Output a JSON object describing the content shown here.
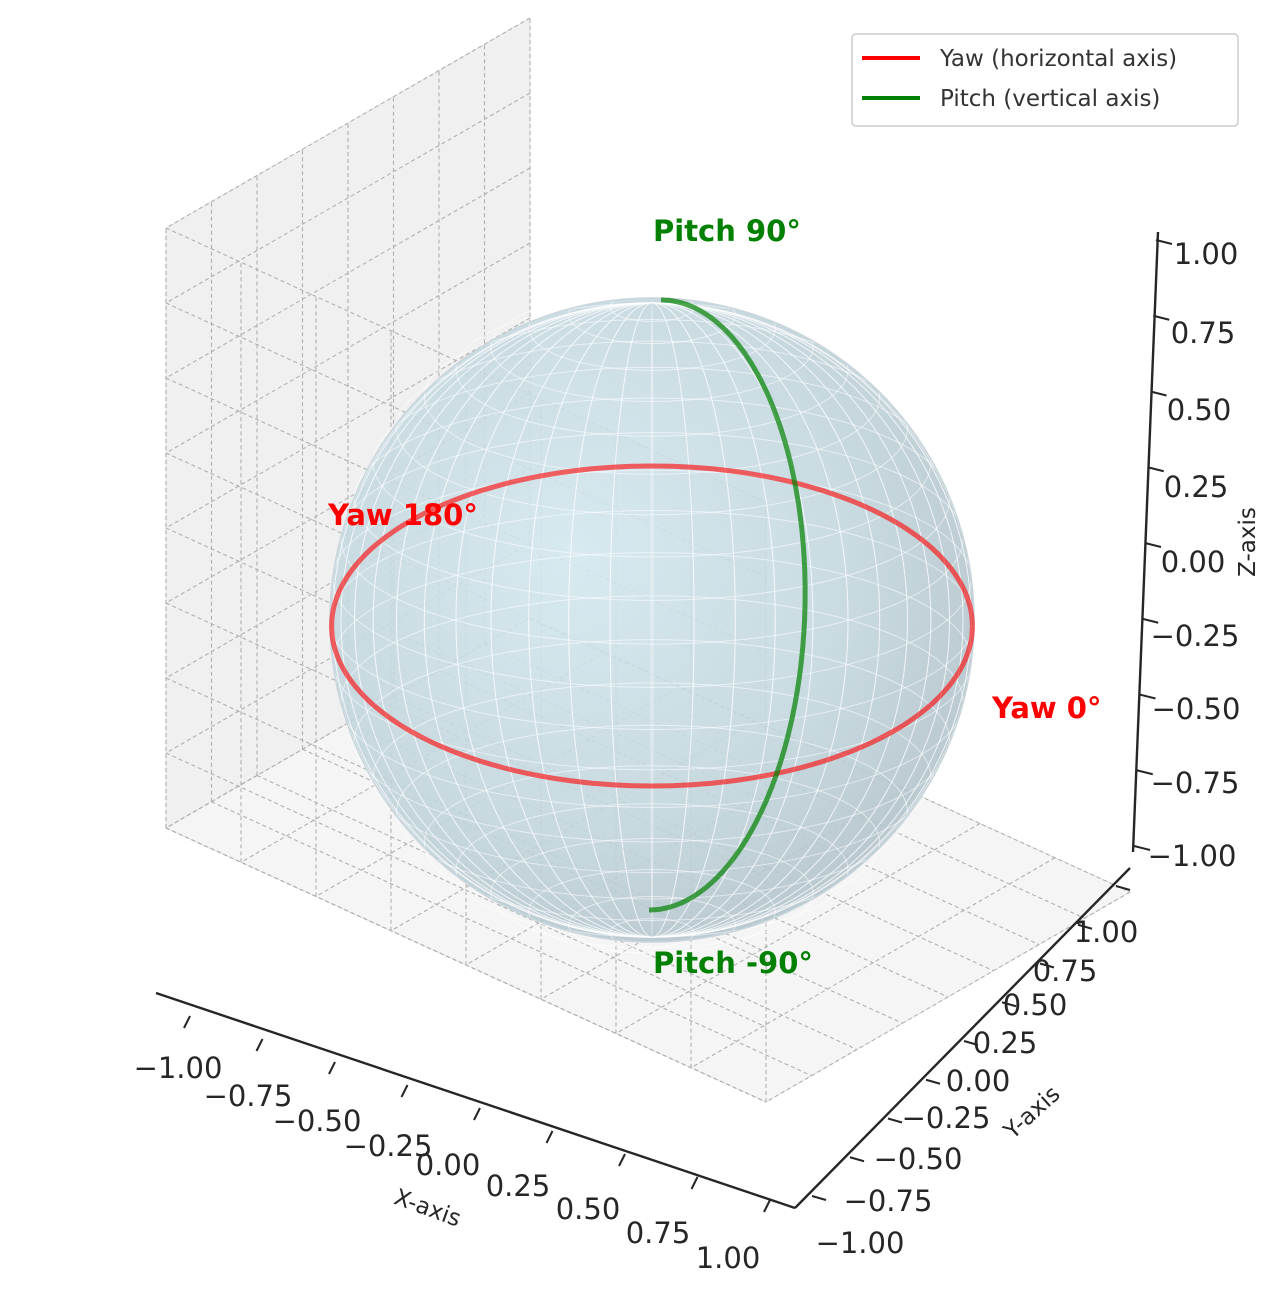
{
  "chart_data": {
    "type": "line",
    "projection": "3d",
    "title": "",
    "xlabel": "X-axis",
    "ylabel": "Y-axis",
    "zlabel": "Z-axis",
    "xlim": [
      -1,
      1
    ],
    "ylim": [
      -1,
      1
    ],
    "zlim": [
      -1,
      1
    ],
    "x_ticks": [
      "−1.00",
      "−0.75",
      "−0.50",
      "−0.25",
      "0.00",
      "0.25",
      "0.50",
      "0.75",
      "1.00"
    ],
    "y_ticks": [
      "−1.00",
      "−0.75",
      "−0.50",
      "−0.25",
      "0.00",
      "0.25",
      "0.50",
      "0.75",
      "1.00"
    ],
    "z_ticks": [
      "−1.00",
      "−0.75",
      "−0.50",
      "−0.25",
      "0.00",
      "0.25",
      "0.50",
      "0.75",
      "1.00"
    ],
    "grid": true,
    "legend_position": "top-right",
    "surface": {
      "shape": "unit sphere",
      "radius": 1,
      "color": "#add8e6",
      "alpha": 0.3
    },
    "series": [
      {
        "name": "Yaw (horizontal axis)",
        "color": "#ff0000",
        "description_curve": "equator z=0",
        "angle_range_deg": [
          0,
          360
        ]
      },
      {
        "name": "Pitch (vertical axis)",
        "color": "#008000",
        "description_curve": "meridian y=0",
        "angle_range_deg": [
          -90,
          90
        ]
      }
    ],
    "annotations": [
      {
        "text": "Yaw 0°",
        "color": "#ff0000",
        "x": 1.1,
        "y": 0,
        "z": 0
      },
      {
        "text": "Yaw 180°",
        "color": "#ff0000",
        "x": -1.1,
        "y": 0,
        "z": 0
      },
      {
        "text": "Pitch 90°",
        "color": "#008000",
        "x": 0,
        "y": 0,
        "z": 1.1
      },
      {
        "text": "Pitch -90°",
        "color": "#008000",
        "x": 0,
        "y": 0,
        "z": -1.1
      }
    ]
  }
}
